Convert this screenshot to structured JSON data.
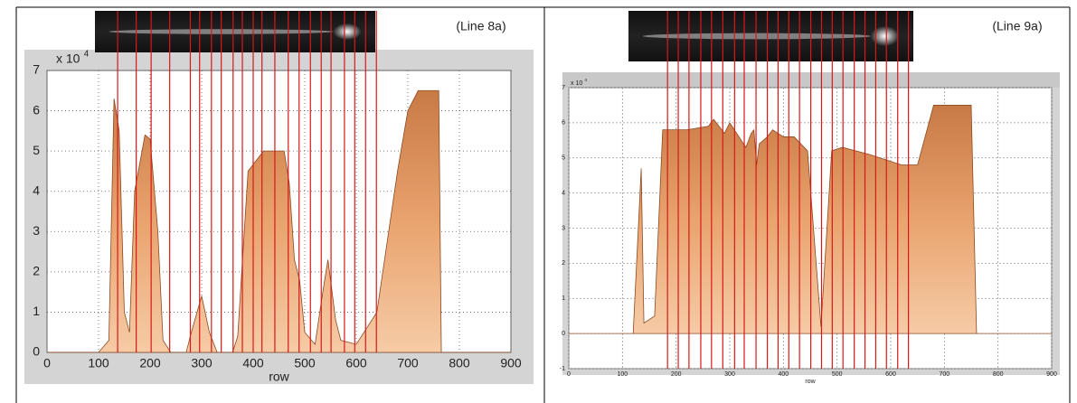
{
  "chart_data": [
    {
      "type": "area",
      "annotation": "(Line 8a)",
      "xlabel": "row",
      "y_multiplier": "x 10",
      "y_exponent": "4",
      "x": [
        0,
        100,
        120,
        130,
        140,
        150,
        160,
        170,
        190,
        200,
        215,
        225,
        240,
        270,
        280,
        300,
        315,
        330,
        360,
        370,
        390,
        420,
        460,
        470,
        480,
        490,
        500,
        520,
        535,
        545,
        560,
        570,
        600,
        640,
        680,
        700,
        720,
        760,
        765,
        900
      ],
      "values": [
        0,
        0,
        0.3,
        6.3,
        5.5,
        1.0,
        0.5,
        4.0,
        5.4,
        5.3,
        3.0,
        0.3,
        0,
        0,
        0.5,
        1.4,
        0.5,
        0,
        0,
        0.4,
        4.5,
        5.0,
        5.0,
        4.2,
        2.3,
        1.8,
        0.5,
        0.2,
        1.5,
        2.3,
        0.8,
        0.3,
        0.2,
        1.0,
        4.5,
        6.0,
        6.5,
        6.5,
        0,
        0
      ],
      "color": "#e9a36e",
      "vlines": [
        137,
        173,
        202,
        238,
        278,
        296,
        319,
        338,
        361,
        379,
        400,
        417,
        442,
        468,
        489,
        511,
        532,
        551,
        577,
        597,
        618,
        639
      ],
      "vline_color": "#d81818",
      "xlim": [
        0,
        900
      ],
      "ylim": [
        0,
        7
      ],
      "xticks": [
        0,
        100,
        200,
        300,
        400,
        500,
        600,
        700,
        800,
        900
      ],
      "yticks": [
        0,
        1,
        2,
        3,
        4,
        5,
        6,
        7
      ],
      "grid": true
    },
    {
      "type": "area",
      "annotation": "(Line 9a)",
      "xlabel": "row",
      "y_multiplier": "x 10",
      "y_exponent": "4",
      "x": [
        0,
        120,
        135,
        140,
        160,
        175,
        220,
        260,
        270,
        290,
        300,
        330,
        340,
        345,
        350,
        355,
        370,
        380,
        400,
        420,
        445,
        470,
        490,
        510,
        560,
        620,
        650,
        680,
        750,
        760,
        900
      ],
      "values": [
        0,
        0,
        4.7,
        0.3,
        0.5,
        5.8,
        5.8,
        5.9,
        6.1,
        5.7,
        6.0,
        5.3,
        5.7,
        5.8,
        4.8,
        5.4,
        5.6,
        5.8,
        5.6,
        5.6,
        5.2,
        0.2,
        5.2,
        5.3,
        5.1,
        4.8,
        4.8,
        6.5,
        6.5,
        0,
        0
      ],
      "color": "#e9a36e",
      "vlines": [
        184,
        204,
        224,
        246,
        266,
        287,
        309,
        327,
        349,
        370,
        390,
        410,
        430,
        451,
        471,
        491,
        511,
        532,
        552,
        572,
        592,
        613,
        633
      ],
      "vline_color": "#d81818",
      "xlim": [
        0,
        900
      ],
      "ylim": [
        -1,
        7
      ],
      "xticks": [
        0,
        100,
        200,
        300,
        400,
        500,
        600,
        700,
        800,
        900
      ],
      "yticks": [
        -1,
        0,
        1,
        2,
        3,
        4,
        5,
        6,
        7
      ],
      "grid": true
    }
  ]
}
